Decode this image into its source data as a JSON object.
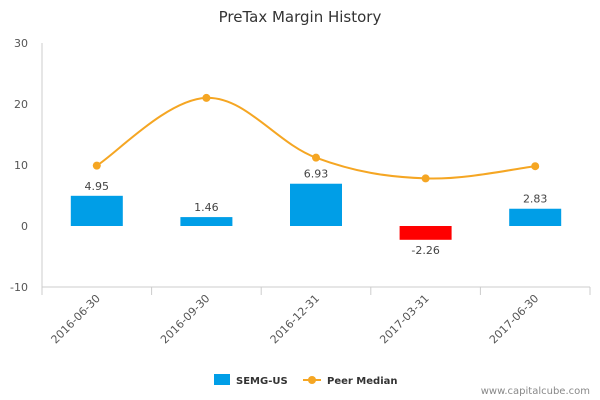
{
  "chart_data": {
    "type": "bar",
    "title": "PreTax Margin History",
    "categories": [
      "2016-06-30",
      "2016-09-30",
      "2016-12-31",
      "2017-03-31",
      "2017-06-30"
    ],
    "series": [
      {
        "name": "SEMG-US",
        "kind": "bar",
        "color": "#009EE7",
        "negative_color": "#FF0000",
        "values": [
          4.95,
          1.46,
          6.93,
          -2.26,
          2.83
        ],
        "labels": [
          "4.95",
          "1.46",
          "6.93",
          "-2.26",
          "2.83"
        ]
      },
      {
        "name": "Peer Median",
        "kind": "line",
        "color": "#F5A623",
        "values": [
          9.9,
          21.0,
          11.2,
          7.8,
          9.8
        ]
      }
    ],
    "ylim": [
      -10,
      30
    ],
    "yticks": [
      -10,
      0,
      10,
      20,
      30
    ],
    "ytick_labels": [
      "-10",
      "0",
      "10",
      "20",
      "30"
    ],
    "grid": false,
    "legend": "bottom-center",
    "xlabel": "",
    "ylabel": ""
  },
  "source": "www.capitalcube.com"
}
